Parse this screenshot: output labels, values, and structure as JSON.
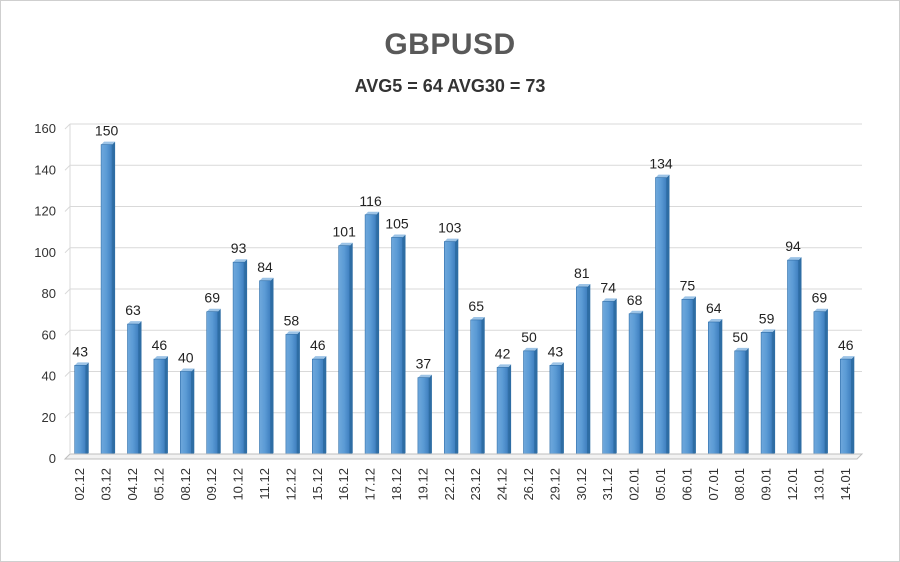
{
  "chart_data": {
    "type": "bar",
    "title": "GBPUSD",
    "subtitle": "AVG5 = 64 AVG30 = 73",
    "categories": [
      "02.12",
      "03.12",
      "04.12",
      "05.12",
      "08.12",
      "09.12",
      "10.12",
      "11.12",
      "12.12",
      "15.12",
      "16.12",
      "17.12",
      "18.12",
      "19.12",
      "22.12",
      "23.12",
      "24.12",
      "26.12",
      "29.12",
      "30.12",
      "31.12",
      "02.01",
      "05.01",
      "06.01",
      "07.01",
      "08.01",
      "09.01",
      "12.01",
      "13.01",
      "14.01"
    ],
    "values": [
      43,
      150,
      63,
      46,
      40,
      69,
      93,
      84,
      58,
      46,
      101,
      116,
      105,
      37,
      103,
      65,
      42,
      50,
      43,
      81,
      74,
      68,
      134,
      75,
      64,
      50,
      59,
      94,
      69,
      46
    ],
    "ylim": [
      0,
      160
    ],
    "yticks": [
      0,
      20,
      40,
      60,
      80,
      100,
      120,
      140,
      160
    ],
    "xlabel": "",
    "ylabel": "",
    "grid": true,
    "legend": "none",
    "bar_color": "#5b9bd5"
  }
}
